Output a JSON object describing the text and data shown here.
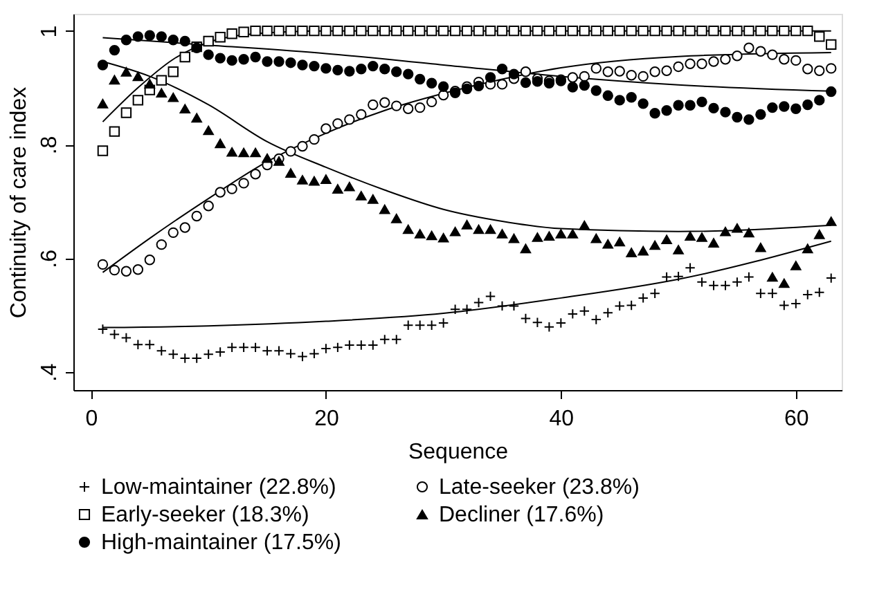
{
  "chart_data": {
    "type": "scatter",
    "xlabel": "Sequence",
    "ylabel": "Continuity of care index",
    "x": [
      1,
      2,
      3,
      4,
      5,
      6,
      7,
      8,
      9,
      10,
      11,
      12,
      13,
      14,
      15,
      16,
      17,
      18,
      19,
      20,
      21,
      22,
      23,
      24,
      25,
      26,
      27,
      28,
      29,
      30,
      31,
      32,
      33,
      34,
      35,
      36,
      37,
      38,
      39,
      40,
      41,
      42,
      43,
      44,
      45,
      46,
      47,
      48,
      49,
      50,
      51,
      52,
      53,
      54,
      55,
      56,
      57,
      58,
      59,
      60,
      61,
      62,
      63
    ],
    "xlim": [
      -1.5,
      63.9
    ],
    "xticks": [
      0,
      20,
      40,
      60
    ],
    "ylim": [
      0.368,
      1.03
    ],
    "yticks": [
      {
        "value": 0.4,
        "label": ".4"
      },
      {
        "value": 0.6,
        "label": ".6"
      },
      {
        "value": 0.8,
        "label": ".8"
      },
      {
        "value": 1,
        "label": "1"
      }
    ],
    "grid": false,
    "legend": "bottom",
    "series": [
      {
        "name": "Low-maintainer (22.8%)",
        "marker": "cross",
        "color": "#000000",
        "values": [
          0.475,
          0.466,
          0.46,
          0.448,
          0.448,
          0.437,
          0.431,
          0.424,
          0.424,
          0.431,
          0.435,
          0.443,
          0.443,
          0.443,
          0.437,
          0.437,
          0.432,
          0.427,
          0.432,
          0.441,
          0.443,
          0.447,
          0.447,
          0.447,
          0.457,
          0.457,
          0.482,
          0.482,
          0.482,
          0.486,
          0.51,
          0.51,
          0.522,
          0.533,
          0.516,
          0.516,
          0.494,
          0.487,
          0.479,
          0.486,
          0.502,
          0.507,
          0.492,
          0.504,
          0.516,
          0.517,
          0.53,
          0.538,
          0.567,
          0.568,
          0.583,
          0.558,
          0.552,
          0.552,
          0.558,
          0.567,
          0.538,
          0.538,
          0.517,
          0.52,
          0.536,
          0.54,
          0.565
        ]
      },
      {
        "name": "Late-seeker (23.8%)",
        "marker": "circle",
        "color": "#000000",
        "values": [
          0.589,
          0.579,
          0.577,
          0.58,
          0.597,
          0.624,
          0.645,
          0.654,
          0.674,
          0.692,
          0.716,
          0.722,
          0.732,
          0.748,
          0.764,
          0.775,
          0.788,
          0.797,
          0.809,
          0.828,
          0.837,
          0.844,
          0.853,
          0.87,
          0.874,
          0.868,
          0.863,
          0.865,
          0.875,
          0.887,
          0.894,
          0.902,
          0.91,
          0.906,
          0.906,
          0.916,
          0.928,
          0.916,
          0.912,
          0.914,
          0.918,
          0.92,
          0.934,
          0.928,
          0.929,
          0.922,
          0.92,
          0.928,
          0.93,
          0.937,
          0.942,
          0.942,
          0.946,
          0.95,
          0.956,
          0.97,
          0.964,
          0.958,
          0.95,
          0.948,
          0.933,
          0.93,
          0.934
        ]
      },
      {
        "name": "Early-seeker (18.3%)",
        "marker": "square",
        "color": "#000000",
        "values": [
          0.789,
          0.823,
          0.856,
          0.878,
          0.896,
          0.913,
          0.928,
          0.954,
          0.972,
          0.982,
          0.989,
          0.995,
          0.998,
          1,
          1,
          1,
          1,
          1,
          1,
          1,
          1,
          1,
          1,
          1,
          1,
          1,
          1,
          1,
          1,
          1,
          1,
          1,
          1,
          1,
          1,
          1,
          1,
          1,
          1,
          1,
          1,
          1,
          1,
          1,
          1,
          1,
          1,
          1,
          1,
          1,
          1,
          1,
          1,
          1,
          1,
          1,
          1,
          1,
          1,
          1,
          1,
          0.99,
          0.976
        ]
      },
      {
        "name": "Decliner (17.6%)",
        "marker": "triangle",
        "color": "#000000",
        "values": [
          0.872,
          0.914,
          0.928,
          0.92,
          0.907,
          0.891,
          0.883,
          0.863,
          0.847,
          0.825,
          0.802,
          0.787,
          0.786,
          0.786,
          0.776,
          0.771,
          0.75,
          0.738,
          0.736,
          0.739,
          0.722,
          0.726,
          0.71,
          0.704,
          0.686,
          0.67,
          0.651,
          0.643,
          0.64,
          0.636,
          0.647,
          0.659,
          0.651,
          0.651,
          0.643,
          0.635,
          0.617,
          0.637,
          0.639,
          0.643,
          0.643,
          0.658,
          0.635,
          0.625,
          0.629,
          0.61,
          0.613,
          0.623,
          0.633,
          0.615,
          0.639,
          0.637,
          0.627,
          0.647,
          0.653,
          0.645,
          0.619,
          0.567,
          0.556,
          0.587,
          0.617,
          0.642,
          0.665
        ]
      },
      {
        "name": "High-maintainer (17.5%)",
        "marker": "circle",
        "color": "#000000",
        "values": [
          0.94,
          0.966,
          0.984,
          0.99,
          0.992,
          0.99,
          0.984,
          0.982,
          0.97,
          0.958,
          0.952,
          0.948,
          0.95,
          0.954,
          0.946,
          0.946,
          0.944,
          0.94,
          0.938,
          0.934,
          0.931,
          0.929,
          0.933,
          0.938,
          0.933,
          0.928,
          0.924,
          0.915,
          0.908,
          0.902,
          0.891,
          0.898,
          0.903,
          0.918,
          0.933,
          0.924,
          0.909,
          0.911,
          0.908,
          0.912,
          0.901,
          0.904,
          0.895,
          0.886,
          0.878,
          0.883,
          0.872,
          0.855,
          0.86,
          0.869,
          0.869,
          0.875,
          0.864,
          0.857,
          0.848,
          0.844,
          0.853,
          0.865,
          0.867,
          0.863,
          0.87,
          0.878,
          0.893
        ]
      },
      {
        "type": "line",
        "color": "#000000",
        "x": [
          1,
          10,
          20,
          30,
          40,
          50,
          63
        ],
        "values": [
          0.478,
          0.481,
          0.489,
          0.503,
          0.53,
          0.563,
          0.63
        ]
      },
      {
        "type": "line",
        "color": "#000000",
        "x": [
          1,
          5,
          10,
          15,
          20,
          25,
          30,
          35,
          40,
          50,
          63
        ],
        "values": [
          0.575,
          0.635,
          0.705,
          0.77,
          0.82,
          0.86,
          0.89,
          0.915,
          0.935,
          0.955,
          0.962
        ]
      },
      {
        "type": "line",
        "color": "#000000",
        "x": [
          1,
          4,
          7,
          10,
          14,
          20,
          63
        ],
        "values": [
          0.84,
          0.9,
          0.95,
          0.98,
          0.995,
          1,
          1
        ]
      },
      {
        "type": "line",
        "color": "#000000",
        "x": [
          1,
          5,
          10,
          15,
          20,
          25,
          30,
          35,
          40,
          50,
          63
        ],
        "values": [
          0.946,
          0.92,
          0.87,
          0.805,
          0.76,
          0.72,
          0.686,
          0.665,
          0.652,
          0.647,
          0.658
        ]
      },
      {
        "type": "line",
        "color": "#000000",
        "x": [
          1,
          10,
          20,
          30,
          40,
          50,
          63
        ],
        "values": [
          0.988,
          0.975,
          0.96,
          0.94,
          0.92,
          0.905,
          0.894
        ]
      }
    ]
  }
}
